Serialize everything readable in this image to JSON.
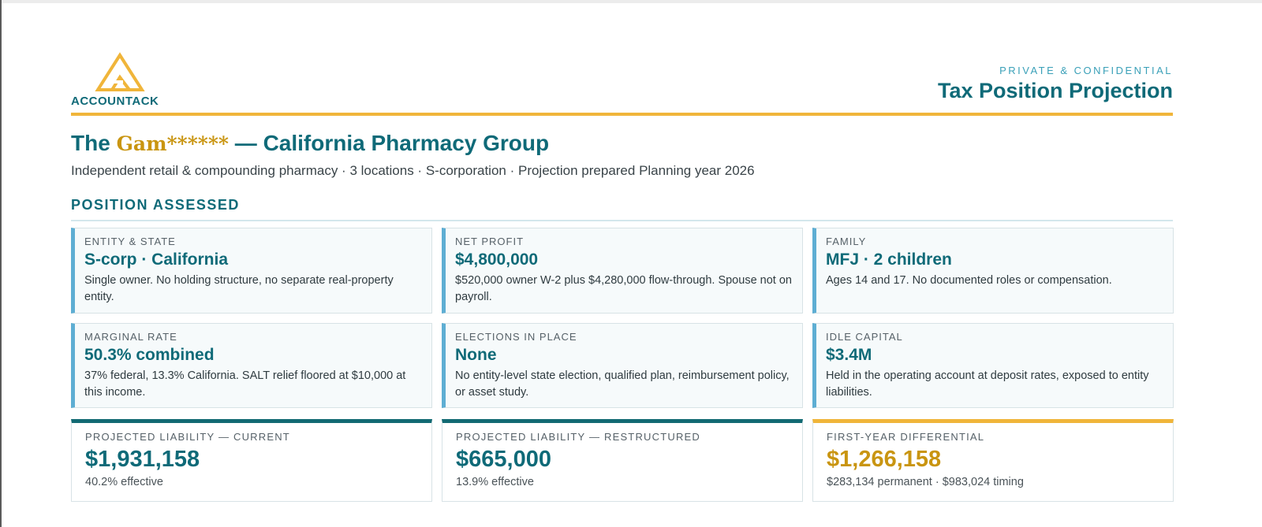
{
  "brand": {
    "logo_text": "ACCOUNTACK",
    "colors": {
      "teal": "#0f6a78",
      "gold": "#f0b53a",
      "gold_text": "#c99511",
      "light_blue": "#5eaed3"
    }
  },
  "header": {
    "confidential": "PRIVATE & CONFIDENTIAL",
    "title": "Tax Position Projection"
  },
  "client": {
    "title_prefix": "The",
    "title_redacted": "Gam******",
    "title_suffix": "— California Pharmacy Group",
    "subtitle": "Independent retail & compounding pharmacy · 3 locations · S-corporation · Projection prepared Planning year 2026"
  },
  "section": {
    "heading": "POSITION ASSESSED"
  },
  "cards": [
    {
      "label": "ENTITY & STATE",
      "value": "S-corp · California",
      "desc": "Single owner. No holding structure, no separate real-property entity."
    },
    {
      "label": "NET PROFIT",
      "value": "$4,800,000",
      "desc": "$520,000 owner W-2 plus $4,280,000 flow-through. Spouse not on payroll."
    },
    {
      "label": "FAMILY",
      "value": "MFJ · 2 children",
      "desc": "Ages 14 and 17. No documented roles or compensation."
    },
    {
      "label": "MARGINAL RATE",
      "value": "50.3% combined",
      "desc": "37% federal, 13.3% California. SALT relief floored at $10,000 at this income."
    },
    {
      "label": "ELECTIONS IN PLACE",
      "value": "None",
      "desc": "No entity-level state election, qualified plan, reimbursement policy, or asset study."
    },
    {
      "label": "IDLE CAPITAL",
      "value": "$3.4M",
      "desc": "Held in the operating account at deposit rates, exposed to entity liabilities."
    }
  ],
  "projections": [
    {
      "label": "PROJECTED LIABILITY — CURRENT",
      "value": "$1,931,158",
      "desc": "40.2% effective"
    },
    {
      "label": "PROJECTED LIABILITY — RESTRUCTURED",
      "value": "$665,000",
      "desc": "13.9% effective"
    },
    {
      "label": "FIRST-YEAR DIFFERENTIAL",
      "value": "$1,266,158",
      "desc": "$283,134 permanent · $983,024 timing"
    }
  ]
}
